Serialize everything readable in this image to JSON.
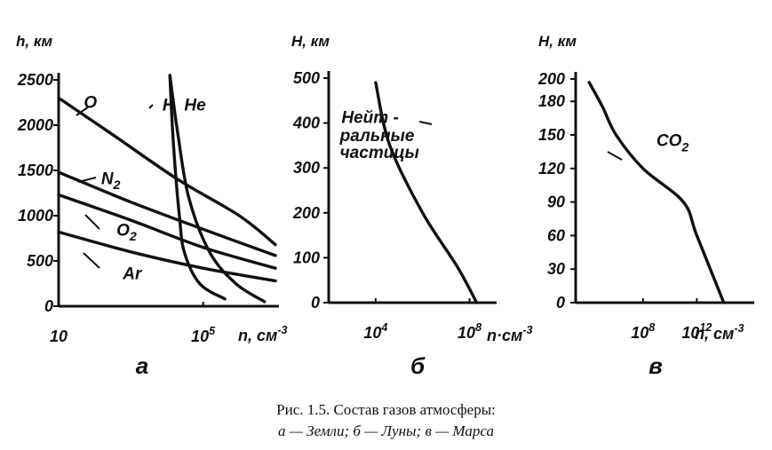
{
  "caption": {
    "line1": "Рис. 1.5. Состав газов атмосферы:",
    "line2": "а — Земли; б — Луны; в — Марса"
  },
  "chart_data": [
    {
      "type": "line",
      "panel_label": "а",
      "xlabel": "n, см",
      "xlabel_sup": "-3",
      "ylabel": "h, км",
      "x_scale": "log",
      "xlim": [
        10,
        10000000
      ],
      "x_ticks": [
        {
          "value": 10,
          "label": "10",
          "sup": ""
        },
        {
          "value": 100000,
          "label": "10",
          "sup": "5"
        }
      ],
      "ylim": [
        0,
        2500
      ],
      "y_ticks": [
        0,
        500,
        1000,
        1500,
        2000,
        2500
      ],
      "series": [
        {
          "name": "O",
          "points": [
            [
              10,
              2300
            ],
            [
              300,
              1900
            ],
            [
              20000,
              1400
            ],
            [
              1000000,
              1000
            ],
            [
              10000000,
              680
            ]
          ]
        },
        {
          "name": "N2",
          "points": [
            [
              10,
              1480
            ],
            [
              1000,
              1150
            ],
            [
              100000,
              850
            ],
            [
              10000000,
              560
            ]
          ]
        },
        {
          "name": "O2",
          "points": [
            [
              10,
              1230
            ],
            [
              1000,
              950
            ],
            [
              100000,
              650
            ],
            [
              10000000,
              420
            ]
          ]
        },
        {
          "name": "Ar",
          "points": [
            [
              10,
              820
            ],
            [
              1000,
              600
            ],
            [
              100000,
              420
            ],
            [
              10000000,
              280
            ]
          ]
        },
        {
          "name": "H",
          "points": [
            [
              12000,
              2550
            ],
            [
              14000,
              2000
            ],
            [
              17000,
              1500
            ],
            [
              22000,
              1000
            ],
            [
              30000,
              600
            ],
            [
              80000,
              250
            ],
            [
              400000,
              80
            ]
          ]
        },
        {
          "name": "He",
          "points": [
            [
              12000,
              2550
            ],
            [
              20000,
              1900
            ],
            [
              40000,
              1200
            ],
            [
              150000,
              600
            ],
            [
              800000,
              250
            ],
            [
              5000000,
              50
            ]
          ]
        }
      ],
      "labels": [
        {
          "text": "O",
          "sub": "",
          "at": [
            50,
            2190
          ]
        },
        {
          "text": "N",
          "sub": "2",
          "at": [
            150,
            1350
          ]
        },
        {
          "text": "O",
          "sub": "2",
          "at": [
            400,
            780
          ]
        },
        {
          "text": "Ar",
          "sub": "",
          "at": [
            600,
            300
          ]
        },
        {
          "text": "H",
          "sub": "",
          "at": [
            7500,
            2160
          ]
        },
        {
          "text": "He",
          "sub": "",
          "at": [
            30000,
            2160
          ]
        }
      ]
    },
    {
      "type": "line",
      "panel_label": "б",
      "xlabel": "n·см",
      "xlabel_sup": "-3",
      "ylabel": "H, км",
      "x_scale": "log",
      "xlim": [
        100,
        1000000000
      ],
      "x_ticks": [
        {
          "value": 10000,
          "label": "10",
          "sup": "4"
        },
        {
          "value": 100000000,
          "label": "10",
          "sup": "8"
        }
      ],
      "ylim": [
        0,
        500
      ],
      "y_ticks": [
        0,
        100,
        200,
        300,
        400,
        500
      ],
      "series": [
        {
          "name": "Нейтральные частицы",
          "points": [
            [
              10000,
              490
            ],
            [
              40000,
              350
            ],
            [
              1000000,
              200
            ],
            [
              30000000,
              80
            ],
            [
              200000000,
              0
            ]
          ]
        }
      ],
      "labels": [
        {
          "text": "Нейт -",
          "sub": "",
          "at": [
            350,
            400
          ]
        },
        {
          "text": "ральные",
          "sub": "",
          "at": [
            300,
            360
          ]
        },
        {
          "text": "частицы",
          "sub": "",
          "at": [
            300,
            322
          ]
        }
      ]
    },
    {
      "type": "line",
      "panel_label": "в",
      "xlabel": "n, см",
      "xlabel_sup": "-3",
      "ylabel": "H, км",
      "x_scale": "log",
      "xlim": [
        1000,
        10000000000000000
      ],
      "x_ticks": [
        {
          "value": 100000000,
          "label": "10",
          "sup": "8"
        },
        {
          "value": 1000000000000,
          "label": "10",
          "sup": "12"
        }
      ],
      "ylim": [
        0,
        200
      ],
      "y_ticks": [
        0,
        30,
        60,
        90,
        120,
        150,
        180,
        200
      ],
      "series": [
        {
          "name": "CO2",
          "points": [
            [
              10000,
              197
            ],
            [
              100000,
              175
            ],
            [
              1000000,
              150
            ],
            [
              100000000,
              120
            ],
            [
              100000000000,
              90
            ],
            [
              1000000000000,
              60
            ],
            [
              100000000000000,
              0
            ]
          ]
        }
      ],
      "labels": [
        {
          "text": "CO",
          "sub": "2",
          "at": [
            1000000000,
            140
          ]
        }
      ]
    }
  ]
}
